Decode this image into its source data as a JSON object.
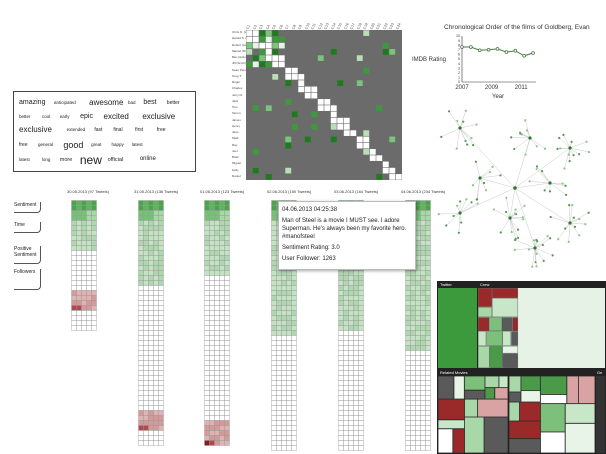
{
  "matrix": {
    "row_labels": [
      "Chris O. (Action)",
      "Harold S. (Fantasy)",
      "Robert (Action)",
      "Marcel (Drama)",
      "Ben (Action)",
      "Jill (Sci-Fi)",
      "Sean Penn",
      "Greg T.",
      "Roger",
      "Charles",
      "Jerry M.",
      "Jack",
      "Tom",
      "Simon",
      "James",
      "Henry",
      "Jane",
      "Mark",
      "Ray",
      "Joel",
      "Brad",
      "Miguel",
      "Kelly",
      "Daniel"
    ],
    "col_labels": [
      "C1",
      "C2",
      "C3",
      "C4",
      "C5",
      "C6",
      "C7",
      "C8",
      "C9",
      "C10",
      "C11",
      "C12",
      "C13",
      "C14",
      "C15",
      "C16",
      "C17",
      "C18",
      "C19",
      "C20",
      "C21",
      "C22",
      "C23",
      "C24"
    ]
  },
  "wordcloud": {
    "words": [
      {
        "t": "amazing",
        "s": 7
      },
      {
        "t": "anticipated",
        "s": 4.5
      },
      {
        "t": "awesome",
        "s": 8
      },
      {
        "t": "bad",
        "s": 4.5
      },
      {
        "t": "best",
        "s": 7
      },
      {
        "t": "better",
        "s": 5
      },
      {
        "t": "better",
        "s": 4.5
      },
      {
        "t": "cool",
        "s": 4.5
      },
      {
        "t": "early",
        "s": 4.5
      },
      {
        "t": "epic",
        "s": 7
      },
      {
        "t": "excited",
        "s": 8
      },
      {
        "t": "exclusive",
        "s": 8
      },
      {
        "t": "exclusive",
        "s": 8
      },
      {
        "t": "extended",
        "s": 4.5
      },
      {
        "t": "fast",
        "s": 5
      },
      {
        "t": "final",
        "s": 5
      },
      {
        "t": "first",
        "s": 5
      },
      {
        "t": "free",
        "s": 5
      },
      {
        "t": "free",
        "s": 5
      },
      {
        "t": "general",
        "s": 4.5
      },
      {
        "t": "good",
        "s": 9
      },
      {
        "t": "great",
        "s": 4.5
      },
      {
        "t": "happy",
        "s": 4.5
      },
      {
        "t": "latest",
        "s": 4.5
      },
      {
        "t": "latest",
        "s": 4.5
      },
      {
        "t": "long",
        "s": 4.5
      },
      {
        "t": "more",
        "s": 5.5
      },
      {
        "t": "new",
        "s": 12
      },
      {
        "t": "official",
        "s": 5.5
      },
      {
        "t": "online",
        "s": 6
      }
    ]
  },
  "chart_data": {
    "type": "line",
    "title": "Chronological Order of the films of Goldberg, Evan",
    "ylabel": "IMDB Rating",
    "xlabel": "Year",
    "x": [
      2007,
      2007.6,
      2008.2,
      2008.8,
      2009.4,
      2010.0,
      2010.6,
      2011.2,
      2011.8
    ],
    "y": [
      7.6,
      7.6,
      6.9,
      7.0,
      7.2,
      6.5,
      6.8,
      5.7,
      6.3
    ],
    "ylim": [
      0,
      10
    ],
    "yticks": [
      "0",
      "1",
      "2",
      "3",
      "4",
      "5",
      "6",
      "7",
      "8",
      "9",
      "10"
    ],
    "xticks": [
      "2007",
      "2009",
      "2011"
    ],
    "color": "#4a7a4a"
  },
  "columns": [
    {
      "label": "30.05.2013 (97 Tweets)",
      "green": 10,
      "pink": 4,
      "rows": 26,
      "tilerows": 18
    },
    {
      "label": "31.05.2013 (136 Tweets)",
      "green": 17,
      "pink": 4,
      "rows": 49,
      "tilerows": 42
    },
    {
      "label": "01.06.2013 (123 Tweets)",
      "green": 15,
      "pink": 5,
      "rows": 49,
      "tilerows": 44
    },
    {
      "label": "02.06.2013 (150 Tweets)",
      "green": 27,
      "pink": 0,
      "rows": 56,
      "tilerows": 50
    },
    {
      "label": "03.06.2013 (164 Tweets)",
      "green": 26,
      "pink": 0,
      "rows": 56,
      "tilerows": 50
    },
    {
      "label": "04.06.2013 (234 Tweets)",
      "green": 30,
      "pink": 3,
      "rows": 56,
      "tilerows": 52
    }
  ],
  "left_labels": [
    "Sentiment",
    "Time",
    "Positive Sentiment",
    "Followers"
  ],
  "tooltip": {
    "time": "04.06.2013 04:25:38",
    "text": "Man of Steel is a movie I MUST see. I adore Superman. He's always been my favorite hero. #manofsteel",
    "sentiment": "Sentiment Rating: 3.0",
    "followers": "User Follower: 1263"
  },
  "treemap": {
    "sections": [
      "Twitter",
      "Crew",
      "Related Movies",
      "Ge"
    ]
  },
  "colors": {
    "green_dark": "#2d8a2d",
    "green_mid": "#6fba6f",
    "green_light": "#c3e3c3",
    "pink": "#d9a3a3",
    "pink_dark": "#9a2a2a",
    "grid": "#555"
  }
}
